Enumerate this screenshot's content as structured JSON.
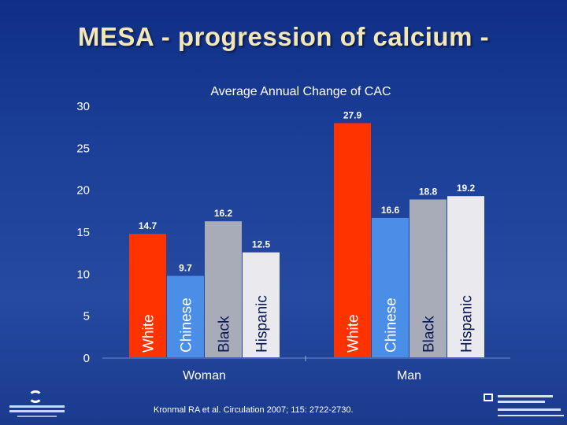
{
  "slide": {
    "title": "MESA - progression of calcium -",
    "citation": "Kronmal RA et al. Circulation 2007; 115: 2722-2730."
  },
  "colors": {
    "White": "#ff3300",
    "Chinese": "#4a8ee8",
    "Black": "#a8acb8",
    "Hispanic": "#e9e9ee",
    "text": "#ffffff"
  },
  "chart_data": {
    "type": "bar",
    "title": "Average Annual Change of CAC",
    "categories": [
      "Woman",
      "Man"
    ],
    "series": [
      {
        "name": "White",
        "values": [
          14.7,
          27.9
        ]
      },
      {
        "name": "Chinese",
        "values": [
          9.7,
          16.6
        ]
      },
      {
        "name": "Black",
        "values": [
          16.2,
          18.8
        ]
      },
      {
        "name": "Hispanic",
        "values": [
          12.5,
          19.2
        ]
      }
    ],
    "ylim": [
      0,
      30
    ],
    "yticks": [
      0,
      5,
      10,
      15,
      20,
      25,
      30
    ],
    "grid": false,
    "legend": "none"
  }
}
